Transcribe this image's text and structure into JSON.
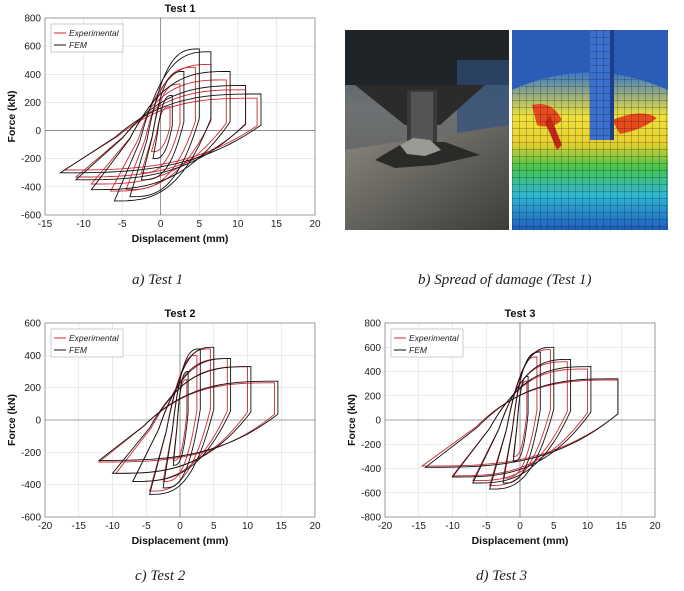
{
  "captions": {
    "a": "a) Test 1",
    "b": "b) Spread of damage (Test 1)",
    "c": "c) Test 2",
    "d": "d) Test 3"
  },
  "colors": {
    "experimental": "#cc2a36",
    "fem": "#111111"
  },
  "chart_data": [
    {
      "type": "line",
      "title": "Test 1",
      "xlabel": "Displacement (mm)",
      "ylabel": "Force (kN)",
      "xlim": [
        -15,
        20
      ],
      "ylim": [
        -600,
        800
      ],
      "xticks": [
        -15,
        -10,
        -5,
        0,
        5,
        10,
        15,
        20
      ],
      "yticks": [
        -600,
        -400,
        -200,
        0,
        200,
        400,
        600,
        800
      ],
      "legend_position": "top-left",
      "grid": true,
      "series": [
        {
          "name": "Experimental",
          "color": "#cc2a36",
          "loops": [
            {
              "xmin": -1.2,
              "xmax": 1.2,
              "fmin": -150,
              "fmax": 170
            },
            {
              "xmin": -2.5,
              "xmax": 2.5,
              "fmin": -300,
              "fmax": 330
            },
            {
              "xmin": -4.5,
              "xmax": 4.5,
              "fmin": -420,
              "fmax": 450
            },
            {
              "xmin": -6.5,
              "xmax": 6.5,
              "fmin": -430,
              "fmax": 470
            },
            {
              "xmin": -9,
              "xmax": 8.5,
              "fmin": -380,
              "fmax": 360
            },
            {
              "xmin": -11,
              "xmax": 11,
              "fmin": -330,
              "fmax": 290
            },
            {
              "xmin": -12.5,
              "xmax": 12.5,
              "fmin": -280,
              "fmax": 230
            }
          ]
        },
        {
          "name": "FEM",
          "color": "#111111",
          "loops": [
            {
              "xmin": -1,
              "xmax": 1.5,
              "fmin": -200,
              "fmax": 250
            },
            {
              "xmin": -2.5,
              "xmax": 3,
              "fmin": -350,
              "fmax": 420
            },
            {
              "xmin": -4,
              "xmax": 5,
              "fmin": -470,
              "fmax": 580
            },
            {
              "xmin": -6,
              "xmax": 6.5,
              "fmin": -500,
              "fmax": 560
            },
            {
              "xmin": -9,
              "xmax": 9,
              "fmin": -420,
              "fmax": 420
            },
            {
              "xmin": -11,
              "xmax": 11,
              "fmin": -350,
              "fmax": 320
            },
            {
              "xmin": -13,
              "xmax": 13,
              "fmin": -300,
              "fmax": 260
            }
          ]
        }
      ]
    },
    {
      "type": "line",
      "title": "Test 2",
      "xlabel": "Displacement (mm)",
      "ylabel": "Force (kN)",
      "xlim": [
        -20,
        20
      ],
      "ylim": [
        -600,
        600
      ],
      "xticks": [
        -20,
        -15,
        -10,
        -5,
        0,
        5,
        10,
        15,
        20
      ],
      "yticks": [
        -600,
        -400,
        -200,
        0,
        200,
        400,
        600
      ],
      "legend_position": "top-left",
      "grid": true,
      "series": [
        {
          "name": "Experimental",
          "color": "#cc2a36",
          "loops": [
            {
              "xmin": -1,
              "xmax": 1,
              "fmin": -250,
              "fmax": 250
            },
            {
              "xmin": -2.5,
              "xmax": 2.5,
              "fmin": -380,
              "fmax": 400
            },
            {
              "xmin": -4.5,
              "xmax": 4.5,
              "fmin": -440,
              "fmax": 440
            },
            {
              "xmin": -7,
              "xmax": 7,
              "fmin": -380,
              "fmax": 380
            },
            {
              "xmin": -9.5,
              "xmax": 10,
              "fmin": -330,
              "fmax": 330
            },
            {
              "xmin": -12,
              "xmax": 14,
              "fmin": -260,
              "fmax": 230
            }
          ]
        },
        {
          "name": "FEM",
          "color": "#111111",
          "loops": [
            {
              "xmin": -1,
              "xmax": 1.2,
              "fmin": -280,
              "fmax": 300
            },
            {
              "xmin": -2.5,
              "xmax": 3,
              "fmin": -420,
              "fmax": 440
            },
            {
              "xmin": -4.5,
              "xmax": 5,
              "fmin": -460,
              "fmax": 450
            },
            {
              "xmin": -7,
              "xmax": 7.5,
              "fmin": -380,
              "fmax": 380
            },
            {
              "xmin": -10,
              "xmax": 10.5,
              "fmin": -330,
              "fmax": 330
            },
            {
              "xmin": -12,
              "xmax": 14.5,
              "fmin": -250,
              "fmax": 240
            }
          ]
        }
      ]
    },
    {
      "type": "line",
      "title": "Test 3",
      "xlabel": "Displacement (mm)",
      "ylabel": "Force (kN)",
      "xlim": [
        -20,
        20
      ],
      "ylim": [
        -800,
        800
      ],
      "xticks": [
        -20,
        -15,
        -10,
        -5,
        0,
        5,
        10,
        15,
        20
      ],
      "yticks": [
        -800,
        -600,
        -400,
        -200,
        0,
        200,
        400,
        600,
        800
      ],
      "legend_position": "top-left",
      "grid": true,
      "series": [
        {
          "name": "Experimental",
          "color": "#cc2a36",
          "loops": [
            {
              "xmin": -1,
              "xmax": 1,
              "fmin": -300,
              "fmax": 320
            },
            {
              "xmin": -2.5,
              "xmax": 2.5,
              "fmin": -480,
              "fmax": 520
            },
            {
              "xmin": -4.5,
              "xmax": 4.5,
              "fmin": -540,
              "fmax": 580
            },
            {
              "xmin": -7,
              "xmax": 7,
              "fmin": -500,
              "fmax": 480
            },
            {
              "xmin": -10,
              "xmax": 10,
              "fmin": -460,
              "fmax": 420
            },
            {
              "xmin": -14.5,
              "xmax": 14.5,
              "fmin": -380,
              "fmax": 330
            }
          ]
        },
        {
          "name": "FEM",
          "color": "#111111",
          "loops": [
            {
              "xmin": -1,
              "xmax": 1.2,
              "fmin": -340,
              "fmax": 360
            },
            {
              "xmin": -2.5,
              "xmax": 3,
              "fmin": -520,
              "fmax": 560
            },
            {
              "xmin": -4.5,
              "xmax": 5,
              "fmin": -570,
              "fmax": 600
            },
            {
              "xmin": -7,
              "xmax": 7.5,
              "fmin": -520,
              "fmax": 500
            },
            {
              "xmin": -10,
              "xmax": 10.5,
              "fmin": -470,
              "fmax": 440
            },
            {
              "xmin": -14,
              "xmax": 14.5,
              "fmin": -390,
              "fmax": 340
            }
          ]
        }
      ]
    }
  ]
}
